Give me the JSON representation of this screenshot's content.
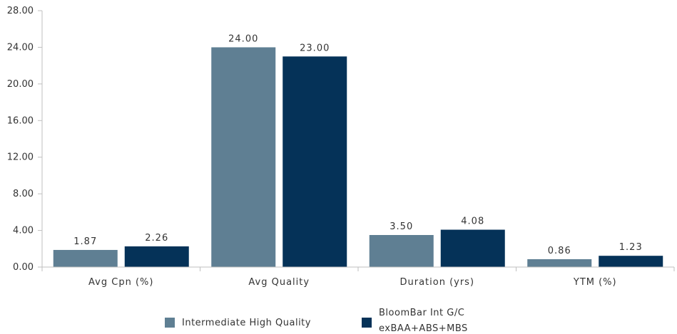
{
  "chart_data": {
    "type": "bar",
    "categories": [
      "Avg Cpn (%)",
      "Avg Quality",
      "Duration (yrs)",
      "YTM (%)"
    ],
    "series": [
      {
        "name": "Intermediate High Quality",
        "values": [
          1.87,
          24.0,
          3.5,
          0.86
        ],
        "labels": [
          "1.87",
          "24.00",
          "3.50",
          "0.86"
        ],
        "color": "#5f7f93"
      },
      {
        "name_lines": [
          "BloomBar Int G/C",
          "exBAA+ABS+MBS"
        ],
        "values": [
          2.26,
          23.0,
          4.08,
          1.23
        ],
        "labels": [
          "2.26",
          "23.00",
          "4.08",
          "1.23"
        ],
        "color": "#053258"
      }
    ],
    "yticks": [
      "0.00",
      "4.00",
      "8.00",
      "12.00",
      "16.00",
      "20.00",
      "24.00",
      "28.00"
    ],
    "ylim": [
      0,
      28
    ],
    "grid": false,
    "legend_position": "bottom"
  }
}
